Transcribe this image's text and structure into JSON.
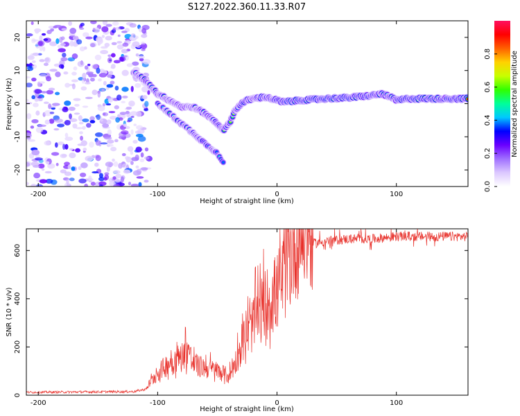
{
  "title": "S127.2022.360.11.33.R07",
  "chart_data": [
    {
      "type": "heatmap",
      "name": "spectrogram",
      "xlabel": "Height of straight line (km)",
      "ylabel": "Frequency (Hz)",
      "xlim": [
        -210,
        160
      ],
      "ylim": [
        -25,
        25
      ],
      "x_ticks": [
        -200,
        -100,
        0,
        100
      ],
      "y_ticks": [
        -20,
        -10,
        0,
        10,
        20
      ],
      "colorbar": {
        "label": "Normalized spectral amplitude",
        "range": [
          0,
          1
        ],
        "ticks": [
          "0.0",
          "0.2",
          "0.4",
          "0.6",
          "0.8"
        ],
        "tick_values": [
          0.0,
          0.2,
          0.4,
          0.6,
          0.8
        ],
        "colors": [
          "#ffffff",
          "#dcc8ff",
          "#a070ff",
          "#6a00ff",
          "#0000ff",
          "#00c8ff",
          "#00ff9a",
          "#30ff00",
          "#c8ff00",
          "#ffd200",
          "#ff6000",
          "#ff0000",
          "#ff1060"
        ]
      },
      "ridge_main": {
        "x": [
          -120,
          -110,
          -100,
          -90,
          -80,
          -70,
          -60,
          -50,
          -45,
          -40,
          -35,
          -30,
          -25,
          -20,
          -10,
          0,
          5,
          20,
          40,
          60,
          80,
          88,
          95,
          100,
          110,
          130,
          160
        ],
        "y": [
          9.5,
          7,
          3,
          1,
          -1,
          -1,
          -3,
          -6,
          -8,
          -6,
          -2,
          0,
          1,
          1.5,
          2,
          1,
          0.5,
          1,
          1.5,
          1.8,
          2.5,
          3,
          2,
          1,
          1.5,
          1.5,
          1.5
        ]
      },
      "ridge_secondary": {
        "x": [
          -100,
          -90,
          -80,
          -70,
          -60,
          -50,
          -45
        ],
        "y": [
          0,
          -3,
          -6,
          -9,
          -12,
          -15,
          -18
        ]
      },
      "noise_region": [
        -210,
        -115
      ]
    },
    {
      "type": "line",
      "name": "snr",
      "xlabel": "Height of straight line (km)",
      "ylabel": "SNR (10 * v/v)",
      "xlim": [
        -210,
        160
      ],
      "ylim": [
        0,
        690
      ],
      "x_ticks": [
        -200,
        -100,
        0,
        100
      ],
      "y_ticks": [
        0,
        200,
        400,
        600
      ],
      "color": "#e8302a",
      "envelope": {
        "x": [
          -210,
          -120,
          -110,
          -100,
          -90,
          -80,
          -75,
          -70,
          -60,
          -50,
          -40,
          -35,
          -30,
          -25,
          -20,
          -15,
          -10,
          -5,
          0,
          5,
          10,
          15,
          20,
          30,
          40,
          60,
          80,
          100,
          130,
          160
        ],
        "y": [
          12,
          15,
          25,
          80,
          120,
          140,
          170,
          110,
          100,
          90,
          70,
          120,
          180,
          220,
          260,
          300,
          330,
          350,
          380,
          420,
          500,
          560,
          600,
          630,
          640,
          650,
          650,
          660,
          660,
          660
        ]
      }
    }
  ]
}
